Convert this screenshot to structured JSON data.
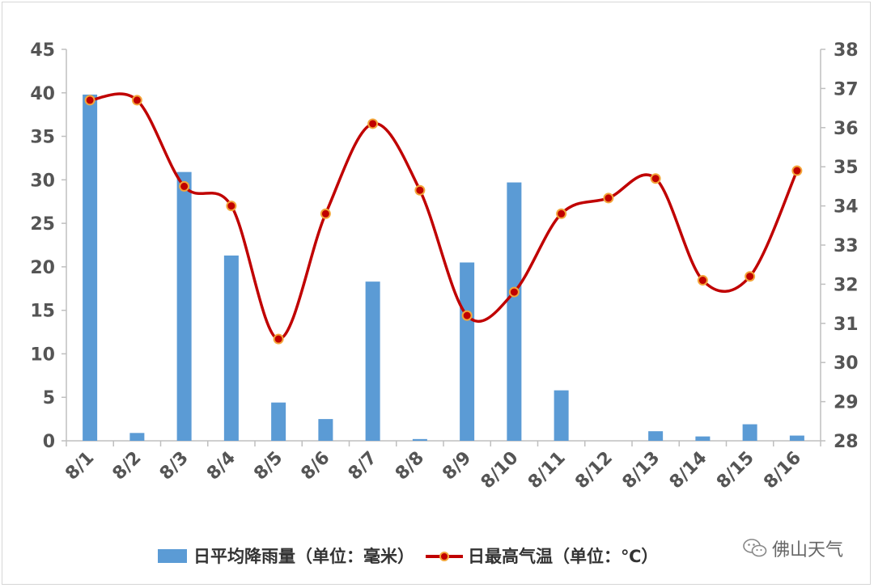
{
  "chart_data": {
    "type": "bar+line",
    "title": "",
    "categories": [
      "8/1",
      "8/2",
      "8/3",
      "8/4",
      "8/5",
      "8/6",
      "8/7",
      "8/8",
      "8/9",
      "8/10",
      "8/11",
      "8/12",
      "8/13",
      "8/14",
      "8/15",
      "8/16"
    ],
    "series": [
      {
        "name": "日平均降雨量（单位：毫米）",
        "type": "bar",
        "axis": "left",
        "color": "#5b9bd5",
        "values": [
          39.8,
          0.9,
          30.9,
          21.3,
          4.4,
          2.5,
          18.3,
          0.2,
          20.5,
          29.7,
          5.8,
          0,
          1.1,
          0.5,
          1.9,
          0.6
        ]
      },
      {
        "name": "日最高气温（单位：℃）",
        "type": "line",
        "axis": "right",
        "color": "#c00000",
        "marker_color": "#f3a53a",
        "values": [
          36.7,
          36.7,
          34.5,
          34.0,
          30.6,
          33.8,
          36.1,
          34.4,
          31.2,
          31.8,
          33.8,
          34.2,
          34.7,
          32.1,
          32.2,
          34.9
        ]
      }
    ],
    "y_left": {
      "lim": [
        0,
        45
      ],
      "ticks": [
        0,
        5,
        10,
        15,
        20,
        25,
        30,
        35,
        40,
        45
      ]
    },
    "y_right": {
      "lim": [
        28,
        38
      ],
      "ticks": [
        28,
        29,
        30,
        31,
        32,
        33,
        34,
        35,
        36,
        37,
        38
      ]
    },
    "grid": false,
    "legend_position": "bottom"
  },
  "legend": {
    "bar_label": "日平均降雨量（单位：毫米）",
    "line_label": "日最高气温（单位：℃）"
  },
  "watermark": {
    "text": "佛山天气",
    "icon": "wechat-icon"
  }
}
